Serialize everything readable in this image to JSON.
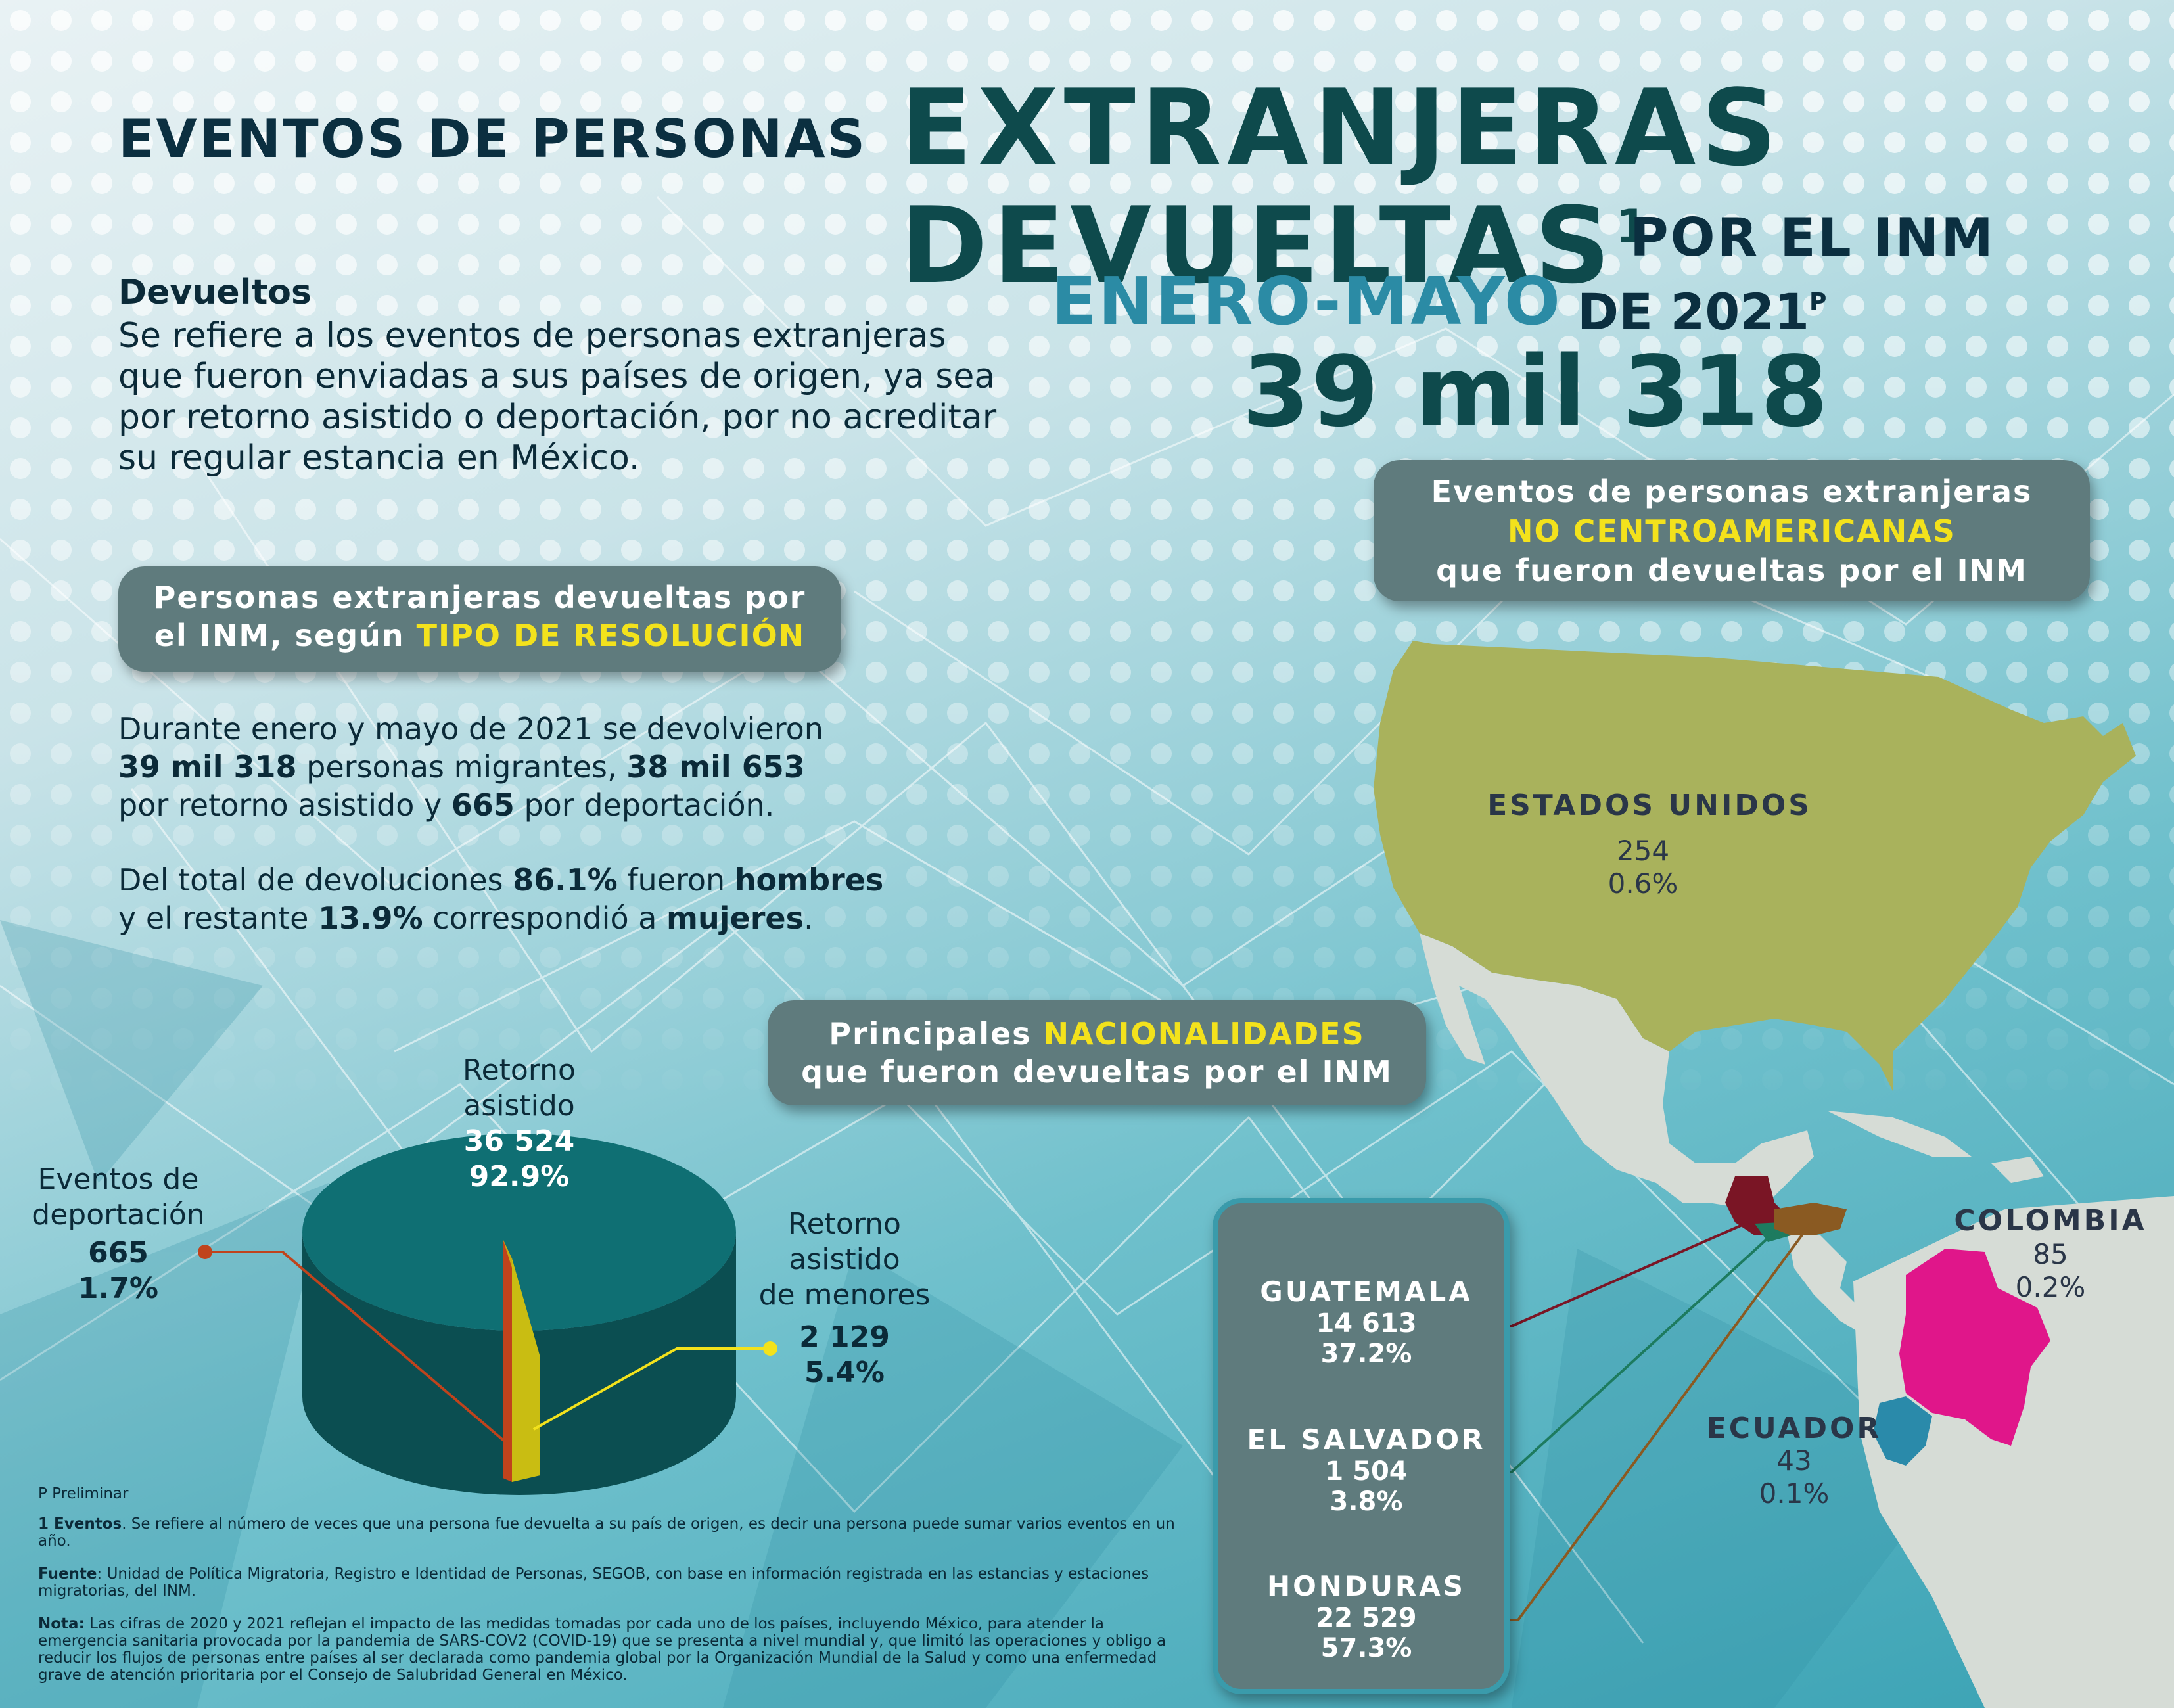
{
  "header": {
    "line1": "EVENTOS DE PERSONAS",
    "line2": "EXTRANJERAS",
    "line3": "DEVUELTAS",
    "line3_sup": "1",
    "line4": "POR EL INM",
    "period_highlight": "ENERO-MAYO",
    "period_rest": "DE 2021",
    "period_sup": "P",
    "total": "39 mil 318"
  },
  "definition": {
    "title": "Devueltos",
    "body": "Se refiere a los eventos de personas extranjeras que fueron enviadas a sus países de origen, ya sea por retorno asistido o deportación, por no acreditar su regular estancia en México."
  },
  "resolution_pill": {
    "line1": "Personas extranjeras devueltas por",
    "line2_a": "el INM, según ",
    "line2_hl": "TIPO DE RESOLUCIÓN"
  },
  "summary": {
    "p1_a": "Durante enero y mayo de 2021 se devolvieron",
    "p1_b": "39 mil 318",
    "p1_c": " personas migrantes, ",
    "p1_d": "38 mil 653",
    "p1_e": "por retorno asistido y ",
    "p1_f": "665",
    "p1_g": " por deportación.",
    "p2_a": "Del total de devoluciones ",
    "p2_b": "86.1%",
    "p2_c": " fueron ",
    "p2_d": "hombres",
    "p2_e": "y el restante ",
    "p2_f": "13.9%",
    "p2_g": " correspondió a ",
    "p2_h": "mujeres",
    "p2_i": "."
  },
  "chart_data": {
    "type": "pie",
    "categories": [
      "Retorno asistido",
      "Eventos de deportación",
      "Retorno asistido de menores"
    ],
    "values": [
      36524,
      665,
      2129
    ],
    "percent": [
      92.9,
      1.7,
      5.4
    ],
    "colors": [
      "#0f6f73",
      "#c0431c",
      "#c9bd12"
    ]
  },
  "pie_labels": {
    "retorno_a": "Retorno",
    "retorno_b": "asistido",
    "retorno_val": "36 524",
    "retorno_pct": "92.9%",
    "deport_a": "Eventos de",
    "deport_b": "deportación",
    "deport_val": "665",
    "deport_pct": "1.7%",
    "menores_a": "Retorno",
    "menores_b": "asistido",
    "menores_c": "de menores",
    "menores_val": "2 129",
    "menores_pct": "5.4%"
  },
  "no_central_pill": {
    "line1": "Eventos de personas extranjeras",
    "line2": "NO CENTROAMERICANAS",
    "line3": "que fueron devueltas por el INM"
  },
  "nationalities_pill": {
    "line1_a": "Principales ",
    "line1_hl": "NACIONALIDADES",
    "line2": "que fueron devueltas por el INM"
  },
  "countries": {
    "usa": {
      "name": "ESTADOS UNIDOS",
      "value": "254",
      "pct": "0.6%"
    },
    "colombia": {
      "name": "COLOMBIA",
      "value": "85",
      "pct": "0.2%"
    },
    "ecuador": {
      "name": "ECUADOR",
      "value": "43",
      "pct": "0.1%"
    }
  },
  "nationalities": [
    {
      "name": "GUATEMALA",
      "value": "14 613",
      "pct": "37.2%"
    },
    {
      "name": "EL SALVADOR",
      "value": "1 504",
      "pct": "3.8%"
    },
    {
      "name": "HONDURAS",
      "value": "22 529",
      "pct": "57.3%"
    }
  ],
  "map_colors": {
    "usa": "#a9b25c",
    "mexico": "#d6dcd6",
    "guatemala": "#7a1525",
    "el_salvador": "#1d7b5f",
    "honduras": "#8a5a22",
    "colombia": "#e0168a",
    "ecuador": "#2a8aaa"
  },
  "notes": {
    "preliminar": "P Preliminar",
    "eventos_label": "1 Eventos",
    "eventos_text": ". Se refiere al número de veces que una persona fue devuelta a su país de origen,  es decir una persona puede sumar varios eventos en un año.",
    "fuente_label": "Fuente",
    "fuente_text": ": Unidad de Política Migratoria, Registro e Identidad de Personas, SEGOB, con base en información registrada en las estancias y estaciones migratorias, del INM.",
    "nota_label": "Nota:",
    "nota_text": " Las cifras de 2020 y 2021 reflejan el impacto de las medidas tomadas por cada uno de los países, incluyendo México, para atender la emergencia sanitaria provocada por la pandemia de SARS-COV2 (COVID-19) que se presenta a nivel mundial y, que limitó las operaciones y obligo a reducir los flujos de personas entre países al ser declarada como pandemia global por la Organización Mundial de la Salud y como una enfermedad grave de atención prioritaria por el Consejo de Salubridad General en México."
  }
}
